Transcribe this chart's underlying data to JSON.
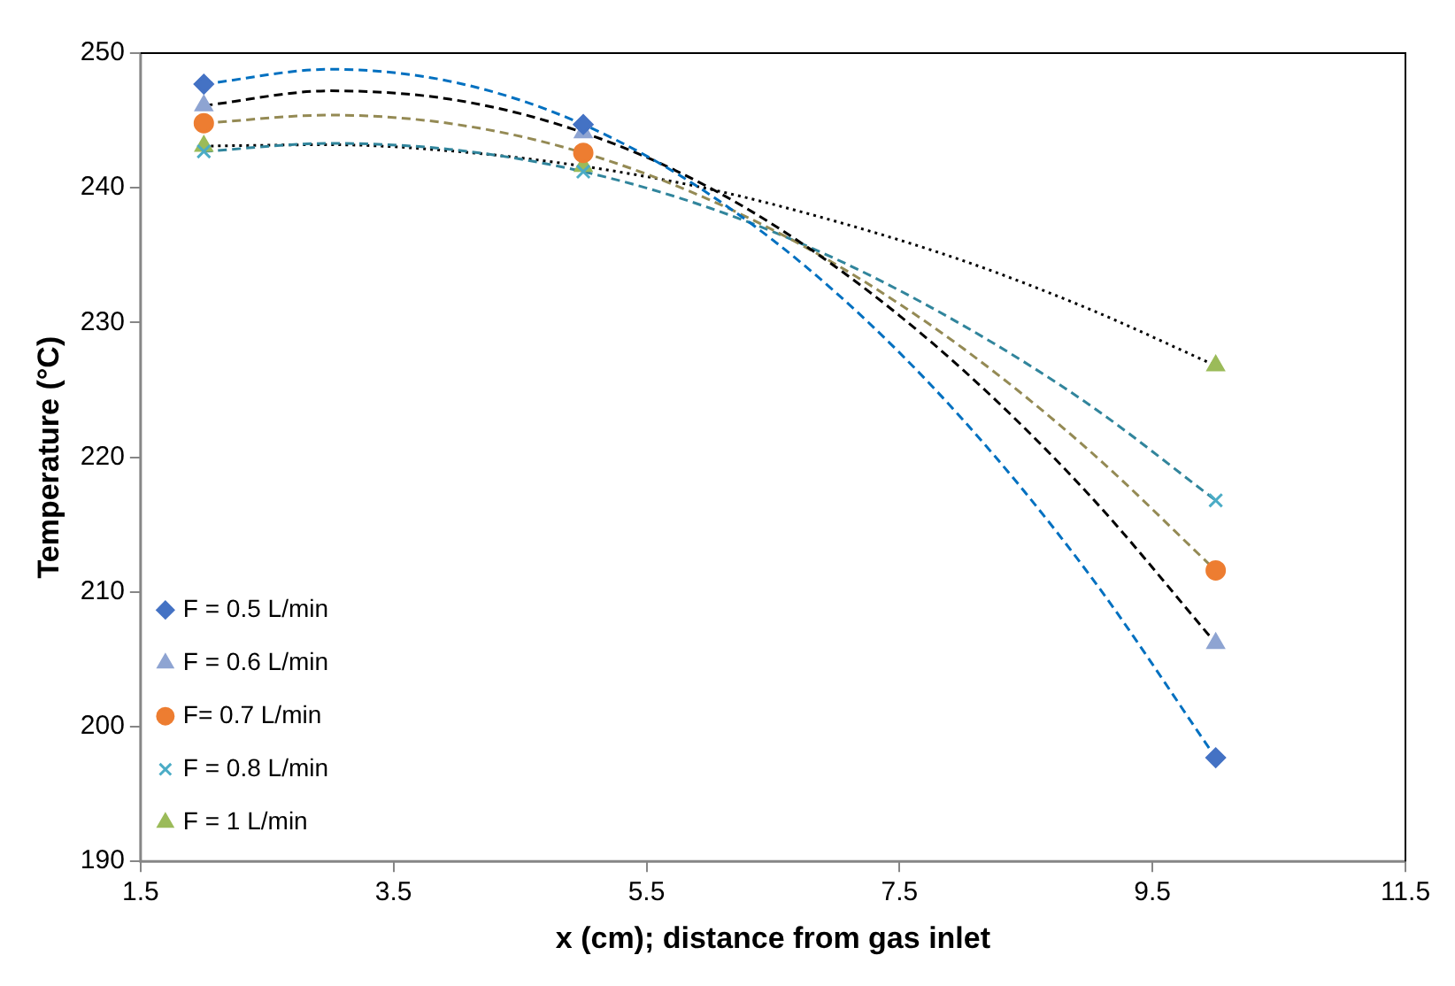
{
  "chart_data": {
    "type": "scatter",
    "xlabel": "x (cm); distance from gas inlet",
    "ylabel": "Temperature (°C)",
    "xlim": [
      1.5,
      11.5
    ],
    "xticks": [
      1.5,
      3.5,
      5.5,
      7.5,
      9.5,
      11.5
    ],
    "ylim": [
      190,
      250
    ],
    "yticks": [
      190,
      200,
      210,
      220,
      230,
      240,
      250
    ],
    "grid": false,
    "legend": "bottom left",
    "series": [
      {
        "type": "line",
        "x": [
          2,
          3,
          4,
          5,
          6,
          7,
          8,
          9,
          10
        ],
        "values": [
          247.7,
          248.8,
          247.8,
          244.7,
          239.5,
          232.2,
          222.8,
          211.3,
          197.7
        ],
        "color": "#0070c0",
        "line_style": "dashed",
        "marker": "none"
      },
      {
        "type": "line",
        "x": [
          2,
          3,
          4,
          5,
          6,
          7,
          8,
          9,
          10
        ],
        "values": [
          246.1,
          247.2,
          246.5,
          244.1,
          240.0,
          234.1,
          226.5,
          217.2,
          206.2
        ],
        "color": "#000000",
        "line_style": "dashed",
        "marker": "none"
      },
      {
        "type": "line",
        "x": [
          2,
          3,
          4,
          5,
          6,
          7,
          8,
          9,
          10
        ],
        "values": [
          244.8,
          245.4,
          244.7,
          242.6,
          239.1,
          234.3,
          228.1,
          220.5,
          211.6
        ],
        "color": "#948a54",
        "line_style": "dashed",
        "marker": "none"
      },
      {
        "type": "line",
        "x": [
          2,
          3,
          4,
          5,
          6,
          7,
          8,
          9,
          10
        ],
        "values": [
          242.7,
          243.3,
          242.8,
          241.2,
          238.5,
          234.7,
          229.8,
          223.9,
          216.8
        ],
        "color": "#31859c",
        "line_style": "dashed",
        "marker": "none"
      },
      {
        "type": "line",
        "x": [
          2,
          3,
          4,
          5,
          6,
          7,
          8,
          9,
          10
        ],
        "values": [
          243.1,
          243.2,
          242.7,
          241.6,
          239.9,
          237.5,
          234.6,
          231.0,
          226.8
        ],
        "color": "#000000",
        "line_style": "dotted",
        "marker": "none"
      },
      {
        "name": "F = 0.5 L/min",
        "x": [
          2,
          5,
          10
        ],
        "values": [
          247.7,
          244.7,
          197.7
        ],
        "color": "#4472c4",
        "marker": "diamond"
      },
      {
        "name": "F = 0.6 L/min",
        "x": [
          2,
          5,
          10
        ],
        "values": [
          246.1,
          244.1,
          206.2
        ],
        "color": "#8ea4d2",
        "marker": "triangle"
      },
      {
        "name": "F= 0.7 L/min",
        "x": [
          2,
          5,
          10
        ],
        "values": [
          244.8,
          242.6,
          211.6
        ],
        "color": "#ed7d31",
        "marker": "circle"
      },
      {
        "name": "F = 0.8 L/min",
        "x": [
          2,
          5,
          10
        ],
        "values": [
          242.7,
          241.2,
          216.8
        ],
        "color": "#4bacc6",
        "marker": "cross"
      },
      {
        "name": "F = 1 L/min",
        "x": [
          2,
          5,
          10
        ],
        "values": [
          243.1,
          241.6,
          226.8
        ],
        "color": "#9bbb59",
        "marker": "triangle"
      }
    ]
  }
}
